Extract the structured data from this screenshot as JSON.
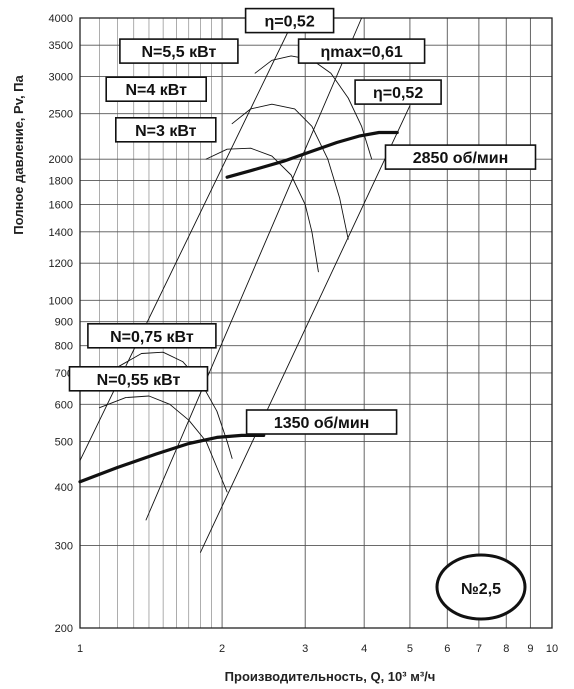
{
  "chart_data": {
    "type": "line",
    "xlabel": "Производительность, Q, 10³ м³/ч",
    "ylabel": "Полное давление, Pv, Па",
    "x_scale": "log",
    "y_scale": "log",
    "xlim": [
      1,
      10
    ],
    "ylim": [
      200,
      4000
    ],
    "x_ticks": [
      1,
      2,
      3,
      4,
      5,
      6,
      7,
      8,
      9,
      10
    ],
    "y_ticks": [
      200,
      300,
      400,
      500,
      600,
      700,
      800,
      900,
      1000,
      1200,
      1400,
      1600,
      1800,
      2000,
      2500,
      3000,
      3500,
      4000
    ],
    "grid": true,
    "badge": "№2,5",
    "series": [
      {
        "name": "2850 об/мин",
        "kind": "speed-curve",
        "points": [
          [
            2.05,
            1830
          ],
          [
            2.3,
            1890
          ],
          [
            2.7,
            1980
          ],
          [
            3.1,
            2080
          ],
          [
            3.5,
            2170
          ],
          [
            3.9,
            2240
          ],
          [
            4.3,
            2280
          ],
          [
            4.7,
            2280
          ]
        ]
      },
      {
        "name": "1350 об/мин",
        "kind": "speed-curve",
        "points": [
          [
            1.0,
            410
          ],
          [
            1.2,
            440
          ],
          [
            1.45,
            470
          ],
          [
            1.7,
            495
          ],
          [
            1.95,
            510
          ],
          [
            2.2,
            515
          ],
          [
            2.45,
            515
          ]
        ]
      },
      {
        "name": "N=5,5 кВт",
        "kind": "power-curve",
        "points": [
          [
            2.35,
            3050
          ],
          [
            2.55,
            3250
          ],
          [
            2.8,
            3320
          ],
          [
            3.1,
            3260
          ],
          [
            3.4,
            3050
          ],
          [
            3.7,
            2700
          ],
          [
            3.95,
            2350
          ],
          [
            4.15,
            2000
          ]
        ]
      },
      {
        "name": "N=4 кВт",
        "kind": "power-curve",
        "points": [
          [
            2.1,
            2380
          ],
          [
            2.3,
            2560
          ],
          [
            2.55,
            2620
          ],
          [
            2.85,
            2560
          ],
          [
            3.1,
            2350
          ],
          [
            3.35,
            2000
          ],
          [
            3.55,
            1650
          ],
          [
            3.7,
            1350
          ]
        ]
      },
      {
        "name": "N=3 кВт",
        "kind": "power-curve",
        "points": [
          [
            1.85,
            2000
          ],
          [
            2.05,
            2100
          ],
          [
            2.3,
            2110
          ],
          [
            2.55,
            2030
          ],
          [
            2.8,
            1850
          ],
          [
            3.0,
            1600
          ],
          [
            3.1,
            1400
          ],
          [
            3.2,
            1150
          ]
        ]
      },
      {
        "name": "N=0,75 кВт",
        "kind": "power-curve",
        "points": [
          [
            1.2,
            720
          ],
          [
            1.35,
            770
          ],
          [
            1.5,
            775
          ],
          [
            1.65,
            740
          ],
          [
            1.8,
            670
          ],
          [
            1.95,
            580
          ],
          [
            2.05,
            500
          ],
          [
            2.1,
            460
          ]
        ]
      },
      {
        "name": "N=0,55 кВт",
        "kind": "power-curve",
        "points": [
          [
            1.1,
            590
          ],
          [
            1.25,
            620
          ],
          [
            1.4,
            625
          ],
          [
            1.55,
            600
          ],
          [
            1.7,
            555
          ],
          [
            1.85,
            500
          ],
          [
            1.95,
            440
          ],
          [
            2.05,
            390
          ]
        ]
      },
      {
        "name": "η=0,52",
        "kind": "efficiency-line",
        "points": [
          [
            1.0,
            455
          ],
          [
            2.85,
            4000
          ]
        ]
      },
      {
        "name": "ηmax=0,61",
        "kind": "efficiency-line",
        "points": [
          [
            1.38,
            340
          ],
          [
            3.95,
            4000
          ]
        ]
      },
      {
        "name": "η=0,52",
        "kind": "efficiency-line",
        "points": [
          [
            1.8,
            290
          ],
          [
            5.0,
            2600
          ]
        ]
      }
    ],
    "labels": {
      "eta1": "η=0,52",
      "n55": "N=5,5 кВт",
      "etamax": "ηmax=0,61",
      "n4": "N=4 кВт",
      "eta2": "η=0,52",
      "n3": "N=3 кВт",
      "rpm2850": "2850 об/мин",
      "n075": "N=0,75 кВт",
      "n055": "N=0,55 кВт",
      "rpm1350": "1350 об/мин"
    }
  }
}
